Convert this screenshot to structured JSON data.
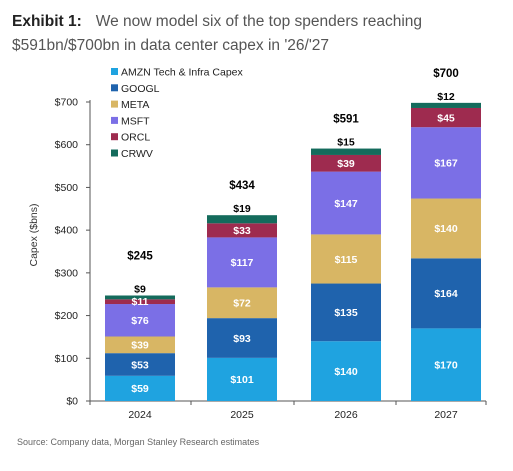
{
  "header": {
    "exhibit": "Exhibit 1:",
    "title": "We now model six of the top spenders reaching $591bn/$700bn in data center capex in '26/'27"
  },
  "source": "Source: Company data, Morgan Stanley Research estimates",
  "chart_data": {
    "type": "bar",
    "stacked": true,
    "categories": [
      "2024",
      "2025",
      "2026",
      "2027"
    ],
    "ylabel": "Capex ($bns)",
    "ylim": [
      0,
      700
    ],
    "yticks": [
      0,
      100,
      200,
      300,
      400,
      500,
      600,
      700
    ],
    "ytick_labels": [
      "$0",
      "$100",
      "$200",
      "$300",
      "$400",
      "$500",
      "$600",
      "$700"
    ],
    "grid": false,
    "legend_position": "top-left",
    "series": [
      {
        "name": "AMZN Tech & Infra Capex",
        "color": "#1fa3e0",
        "values": [
          59,
          101,
          140,
          170
        ],
        "labels": [
          "$59",
          "$101",
          "$140",
          "$170"
        ]
      },
      {
        "name": "GOOGL",
        "color": "#1f63ad",
        "values": [
          53,
          93,
          135,
          164
        ],
        "labels": [
          "$53",
          "$93",
          "$135",
          "$164"
        ]
      },
      {
        "name": "META",
        "color": "#d8b664",
        "values": [
          39,
          72,
          115,
          140
        ],
        "labels": [
          "$39",
          "$72",
          "$115",
          "$140"
        ]
      },
      {
        "name": "MSFT",
        "color": "#7b6fe6",
        "values": [
          76,
          117,
          147,
          167
        ],
        "labels": [
          "$76",
          "$117",
          "$147",
          "$167"
        ]
      },
      {
        "name": "ORCL",
        "color": "#9e2b4f",
        "values": [
          11,
          33,
          39,
          45
        ],
        "labels": [
          "$11",
          "$33",
          "$39",
          "$45"
        ]
      },
      {
        "name": "CRWV",
        "color": "#146b5c",
        "values": [
          9,
          19,
          15,
          12
        ],
        "labels": [
          "$9",
          "$19",
          "$15",
          "$12"
        ]
      }
    ],
    "totals": [
      "$245",
      "$434",
      "$591",
      "$700"
    ]
  }
}
